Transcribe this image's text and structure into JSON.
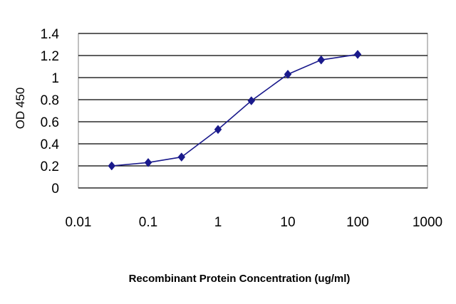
{
  "chart_data": {
    "type": "line",
    "xlabel": "Recombinant Protein Concentration (ug/ml)",
    "ylabel": "OD 450",
    "x_scale": "log",
    "xlim": [
      0.01,
      1000
    ],
    "ylim": [
      0,
      1.4
    ],
    "x_ticks": [
      0.01,
      0.1,
      1,
      10,
      100,
      1000
    ],
    "x_tick_labels": [
      "0.01",
      "0.1",
      "1",
      "10",
      "100",
      "1000"
    ],
    "y_ticks": [
      0,
      0.2,
      0.4,
      0.6,
      0.8,
      1,
      1.2,
      1.4
    ],
    "y_tick_labels": [
      "0",
      "0.2",
      "0.4",
      "0.6",
      "0.8",
      "1",
      "1.2",
      "1.4"
    ],
    "grid": "horizontal",
    "series": [
      {
        "x": [
          0.03,
          0.1,
          0.3,
          1,
          3,
          10,
          30,
          100
        ],
        "y": [
          0.2,
          0.23,
          0.28,
          0.53,
          0.79,
          1.03,
          1.16,
          1.21
        ],
        "color": "#1a1a8c",
        "marker": "diamond"
      }
    ],
    "colors": {
      "series": "#1a1a8c",
      "grid": "#000000",
      "frame": "#808080"
    }
  }
}
